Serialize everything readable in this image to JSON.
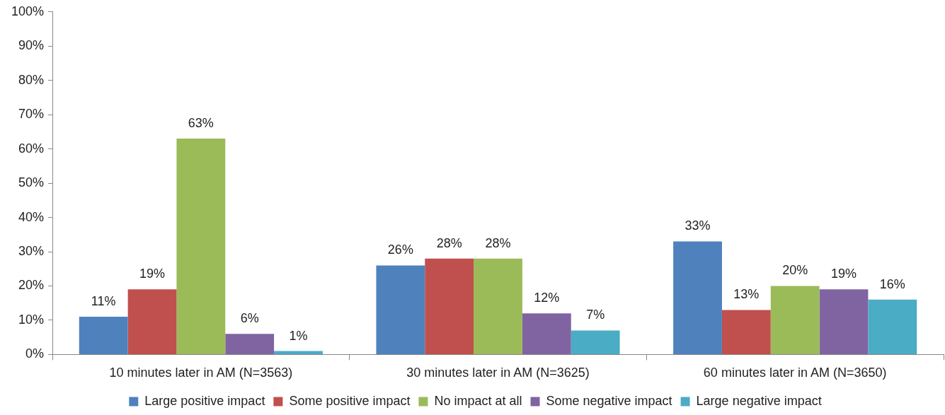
{
  "chart_data": {
    "type": "bar",
    "categories": [
      "10 minutes later in AM (N=3563)",
      "30 minutes later in AM (N=3625)",
      "60 minutes later in AM (N=3650)"
    ],
    "series": [
      {
        "name": "Large positive impact",
        "color": "#4f81bd",
        "values": [
          11,
          26,
          33
        ],
        "value_labels": [
          "11%",
          "26%",
          "33%"
        ]
      },
      {
        "name": "Some positive impact",
        "color": "#c0504d",
        "values": [
          19,
          28,
          13
        ],
        "value_labels": [
          "19%",
          "28%",
          "13%"
        ]
      },
      {
        "name": "No impact at all",
        "color": "#9bbb59",
        "values": [
          63,
          28,
          20
        ],
        "value_labels": [
          "63%",
          "28%",
          "20%"
        ]
      },
      {
        "name": "Some negative impact",
        "color": "#8064a2",
        "values": [
          6,
          12,
          19
        ],
        "value_labels": [
          "6%",
          "12%",
          "19%"
        ]
      },
      {
        "name": "Large negative impact",
        "color": "#4bacc6",
        "values": [
          1,
          7,
          16
        ],
        "value_labels": [
          "1%",
          "7%",
          "16%"
        ]
      }
    ],
    "ylim": [
      0,
      100
    ],
    "yticks": [
      {
        "value": 0,
        "label": "0%"
      },
      {
        "value": 10,
        "label": "10%"
      },
      {
        "value": 20,
        "label": "20%"
      },
      {
        "value": 30,
        "label": "30%"
      },
      {
        "value": 40,
        "label": "40%"
      },
      {
        "value": 50,
        "label": "50%"
      },
      {
        "value": 60,
        "label": "60%"
      },
      {
        "value": 70,
        "label": "70%"
      },
      {
        "value": 80,
        "label": "80%"
      },
      {
        "value": 90,
        "label": "90%"
      },
      {
        "value": 100,
        "label": "100%"
      }
    ],
    "legend": "bottom"
  }
}
